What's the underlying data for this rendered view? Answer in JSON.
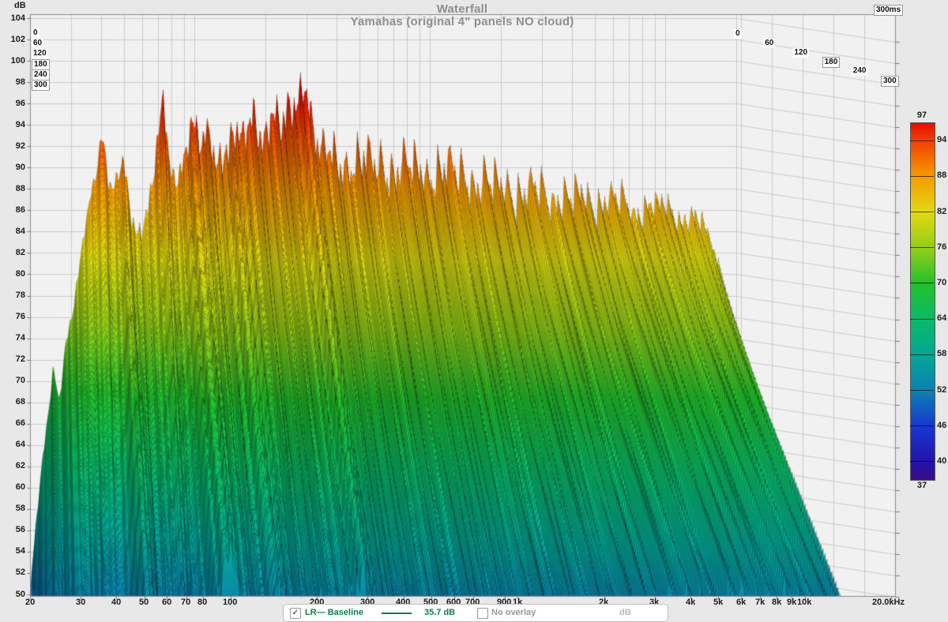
{
  "header": {
    "title": "Waterfall",
    "subtitle": "Yamahas (original 4\" panels NO cloud)"
  },
  "axes": {
    "y_unit": "dB",
    "y_ticks": [
      104,
      102,
      100,
      98,
      96,
      94,
      92,
      90,
      88,
      86,
      84,
      82,
      80,
      78,
      76,
      74,
      72,
      70,
      68,
      66,
      64,
      62,
      60,
      58,
      56,
      54,
      52,
      50
    ],
    "x_ticks": [
      {
        "label": "20",
        "f": 20
      },
      {
        "label": "30",
        "f": 30
      },
      {
        "label": "40",
        "f": 40
      },
      {
        "label": "50",
        "f": 50
      },
      {
        "label": "60",
        "f": 60
      },
      {
        "label": "70",
        "f": 70
      },
      {
        "label": "80",
        "f": 80
      },
      {
        "label": "100",
        "f": 100
      },
      {
        "label": "200",
        "f": 200
      },
      {
        "label": "300",
        "f": 300
      },
      {
        "label": "400",
        "f": 400
      },
      {
        "label": "500",
        "f": 500
      },
      {
        "label": "600",
        "f": 600
      },
      {
        "label": "700",
        "f": 700
      },
      {
        "label": "900",
        "f": 900
      },
      {
        "label": "1k",
        "f": 1000
      },
      {
        "label": "2k",
        "f": 2000
      },
      {
        "label": "3k",
        "f": 3000
      },
      {
        "label": "4k",
        "f": 4000
      },
      {
        "label": "5k",
        "f": 5000
      },
      {
        "label": "6k",
        "f": 6000
      },
      {
        "label": "7k",
        "f": 7000
      },
      {
        "label": "8k",
        "f": 8000
      },
      {
        "label": "9k",
        "f": 9000
      },
      {
        "label": "10k",
        "f": 10000
      },
      {
        "label": "20.0kHz",
        "f": 20000
      }
    ],
    "time_ticks": [
      0,
      60,
      120,
      180,
      240,
      300
    ],
    "time_unit_label": "300ms"
  },
  "colorbar": {
    "top_label": "97",
    "bottom_label": "37",
    "tick_labels": [
      94,
      88,
      82,
      76,
      70,
      64,
      58,
      52,
      46,
      40
    ]
  },
  "legend": {
    "baseline_checked": "✓",
    "baseline_label": "LR— Baseline",
    "level_label": "35.7 dB",
    "overlay_label": "No overlay",
    "unit_label": "dB",
    "accent_color": "#0c8048",
    "muted_color": "#9a9a9a"
  },
  "chart_data": {
    "type": "waterfall",
    "title": "Waterfall",
    "subtitle": "Yamahas (original 4\" panels NO cloud)",
    "x_axis": {
      "label": "Hz",
      "scale": "log",
      "min": 20,
      "max": 20000
    },
    "y_axis": {
      "label": "dB",
      "min": 50,
      "max": 104,
      "tick_step": 2
    },
    "time_axis": {
      "label": "ms",
      "min": 0,
      "max": 300,
      "tick_step": 60
    },
    "color_axis": {
      "min": 37,
      "max": 97,
      "tick_step": 6
    },
    "legend_position": "bottom",
    "grid": true,
    "colormap": [
      [
        37,
        "#3b0d80"
      ],
      [
        40,
        "#2212ac"
      ],
      [
        46,
        "#1837d2"
      ],
      [
        52,
        "#0c81b0"
      ],
      [
        58,
        "#03a795"
      ],
      [
        64,
        "#0abb66"
      ],
      [
        70,
        "#22c12d"
      ],
      [
        76,
        "#93ce17"
      ],
      [
        82,
        "#e0da10"
      ],
      [
        88,
        "#f59c00"
      ],
      [
        94,
        "#f04000"
      ],
      [
        97,
        "#e80c00"
      ]
    ],
    "grid_freqs": [
      20,
      30,
      40,
      50,
      60,
      70,
      80,
      90,
      100,
      200,
      300,
      400,
      500,
      600,
      700,
      800,
      900,
      1000,
      2000,
      3000,
      4000,
      5000,
      6000,
      7000,
      8000,
      9000,
      10000,
      20000
    ],
    "spectrum_db": [
      [
        20,
        50
      ],
      [
        21,
        55
      ],
      [
        22,
        60
      ],
      [
        23.5,
        66
      ],
      [
        25,
        72
      ],
      [
        26.5,
        69
      ],
      [
        28,
        73
      ],
      [
        30,
        75.5
      ],
      [
        32,
        79
      ],
      [
        34,
        84
      ],
      [
        36.5,
        88.5
      ],
      [
        38.5,
        91
      ],
      [
        40,
        93.6
      ],
      [
        41.5,
        92
      ],
      [
        43,
        88.5
      ],
      [
        45,
        87
      ],
      [
        47,
        88.5
      ],
      [
        49.5,
        90
      ],
      [
        51.5,
        88
      ],
      [
        54,
        85.5
      ],
      [
        56.5,
        84.5
      ],
      [
        58.5,
        85
      ],
      [
        60.5,
        85.5
      ],
      [
        63,
        86
      ],
      [
        65.5,
        88
      ],
      [
        68.5,
        91
      ],
      [
        71,
        93.2
      ],
      [
        73.5,
        96
      ],
      [
        75.5,
        93.5
      ],
      [
        78,
        90
      ],
      [
        81,
        89
      ],
      [
        84,
        90
      ],
      [
        87,
        90.5
      ],
      [
        90.5,
        91.5
      ],
      [
        93.5,
        93
      ],
      [
        96,
        94.4
      ],
      [
        99,
        93.5
      ],
      [
        103,
        92
      ],
      [
        107,
        91.5
      ],
      [
        112,
        92.5
      ],
      [
        117,
        93
      ],
      [
        122,
        90.5
      ],
      [
        128,
        91.5
      ],
      [
        134,
        92.5
      ],
      [
        139,
        91.5
      ],
      [
        145,
        93.8
      ],
      [
        152,
        92.5
      ],
      [
        158,
        91.5
      ],
      [
        165,
        93
      ],
      [
        172,
        94
      ],
      [
        180,
        94.8
      ],
      [
        188,
        93.5
      ],
      [
        196,
        93
      ],
      [
        205,
        94.5
      ],
      [
        213,
        95.5
      ],
      [
        222,
        94
      ],
      [
        232,
        93
      ],
      [
        243,
        94
      ],
      [
        255,
        95
      ],
      [
        268,
        96
      ],
      [
        280,
        97
      ],
      [
        292,
        98.8
      ],
      [
        302,
        97
      ],
      [
        312,
        94.5
      ],
      [
        325,
        92
      ],
      [
        340,
        91
      ],
      [
        355,
        90.5
      ],
      [
        372,
        91
      ],
      [
        390,
        90.5
      ],
      [
        410,
        90
      ],
      [
        430,
        90.5
      ],
      [
        455,
        90
      ],
      [
        480,
        90.3
      ],
      [
        510,
        89.8
      ],
      [
        540,
        90.2
      ],
      [
        575,
        89.6
      ],
      [
        610,
        90
      ],
      [
        650,
        89.4
      ],
      [
        695,
        89.8
      ],
      [
        740,
        89.3
      ],
      [
        790,
        89.7
      ],
      [
        845,
        89.2
      ],
      [
        905,
        89.6
      ],
      [
        970,
        89
      ],
      [
        1040,
        89.4
      ],
      [
        1120,
        88.9
      ],
      [
        1210,
        89.2
      ],
      [
        1310,
        88.6
      ],
      [
        1420,
        88.9
      ],
      [
        1550,
        88.4
      ],
      [
        1700,
        88
      ],
      [
        1870,
        87.6
      ],
      [
        2060,
        87.9
      ],
      [
        2280,
        87.2
      ],
      [
        2520,
        86.8
      ],
      [
        2800,
        87.1
      ],
      [
        3100,
        86.6
      ],
      [
        3450,
        87
      ],
      [
        3850,
        86.2
      ],
      [
        4300,
        86.6
      ],
      [
        4800,
        86
      ],
      [
        5400,
        86.4
      ],
      [
        6050,
        85.8
      ],
      [
        6800,
        86.1
      ],
      [
        7600,
        85.6
      ],
      [
        8500,
        85.9
      ],
      [
        9500,
        85.4
      ],
      [
        10600,
        85.8
      ],
      [
        11800,
        85.2
      ],
      [
        13000,
        84.6
      ],
      [
        14200,
        83.8
      ],
      [
        15500,
        83
      ],
      [
        16800,
        81
      ],
      [
        17800,
        78
      ],
      [
        18700,
        74
      ],
      [
        19400,
        69
      ],
      [
        20000,
        63
      ]
    ],
    "decay_db_at_300ms": [
      [
        20,
        22
      ],
      [
        22,
        22
      ],
      [
        25,
        24
      ],
      [
        28,
        26
      ],
      [
        30,
        25
      ],
      [
        32,
        28
      ],
      [
        34,
        36
      ],
      [
        36,
        45
      ],
      [
        38,
        55
      ],
      [
        40,
        60
      ],
      [
        42,
        56
      ],
      [
        44,
        52
      ],
      [
        46,
        50
      ],
      [
        48,
        44
      ],
      [
        50,
        36
      ],
      [
        52,
        33
      ],
      [
        54,
        32
      ],
      [
        56,
        33
      ],
      [
        58,
        40
      ],
      [
        60,
        42
      ],
      [
        63,
        45
      ],
      [
        66,
        50
      ],
      [
        70,
        52
      ],
      [
        73.5,
        56
      ],
      [
        77,
        54
      ],
      [
        81,
        50
      ],
      [
        85,
        46
      ],
      [
        90,
        40
      ],
      [
        95,
        36
      ],
      [
        100,
        35
      ],
      [
        106,
        37
      ],
      [
        113,
        39
      ],
      [
        120,
        41
      ],
      [
        128,
        40
      ],
      [
        137,
        41
      ],
      [
        145,
        40
      ],
      [
        155,
        41
      ],
      [
        165,
        42
      ],
      [
        175,
        41
      ],
      [
        188,
        42
      ],
      [
        200,
        41
      ],
      [
        215,
        42
      ],
      [
        230,
        41
      ],
      [
        250,
        42
      ],
      [
        270,
        41
      ],
      [
        292,
        42
      ],
      [
        320,
        42
      ],
      [
        350,
        41
      ],
      [
        400,
        42
      ],
      [
        460,
        41
      ],
      [
        530,
        42
      ],
      [
        620,
        41
      ],
      [
        720,
        42
      ],
      [
        840,
        41
      ],
      [
        1000,
        41
      ],
      [
        1200,
        40
      ],
      [
        1450,
        40
      ],
      [
        1750,
        39
      ],
      [
        2100,
        38
      ],
      [
        2600,
        37
      ],
      [
        3200,
        36
      ],
      [
        4000,
        35
      ],
      [
        5000,
        35
      ],
      [
        6300,
        34
      ],
      [
        8000,
        34
      ],
      [
        10000,
        34
      ],
      [
        12500,
        35
      ],
      [
        15000,
        36
      ],
      [
        17500,
        37
      ],
      [
        20000,
        38
      ]
    ],
    "modal_ridges_hz": [
      40,
      49.5,
      73.5,
      96,
      145,
      292
    ],
    "slices": 150,
    "decay_exponent": 0.85
  }
}
